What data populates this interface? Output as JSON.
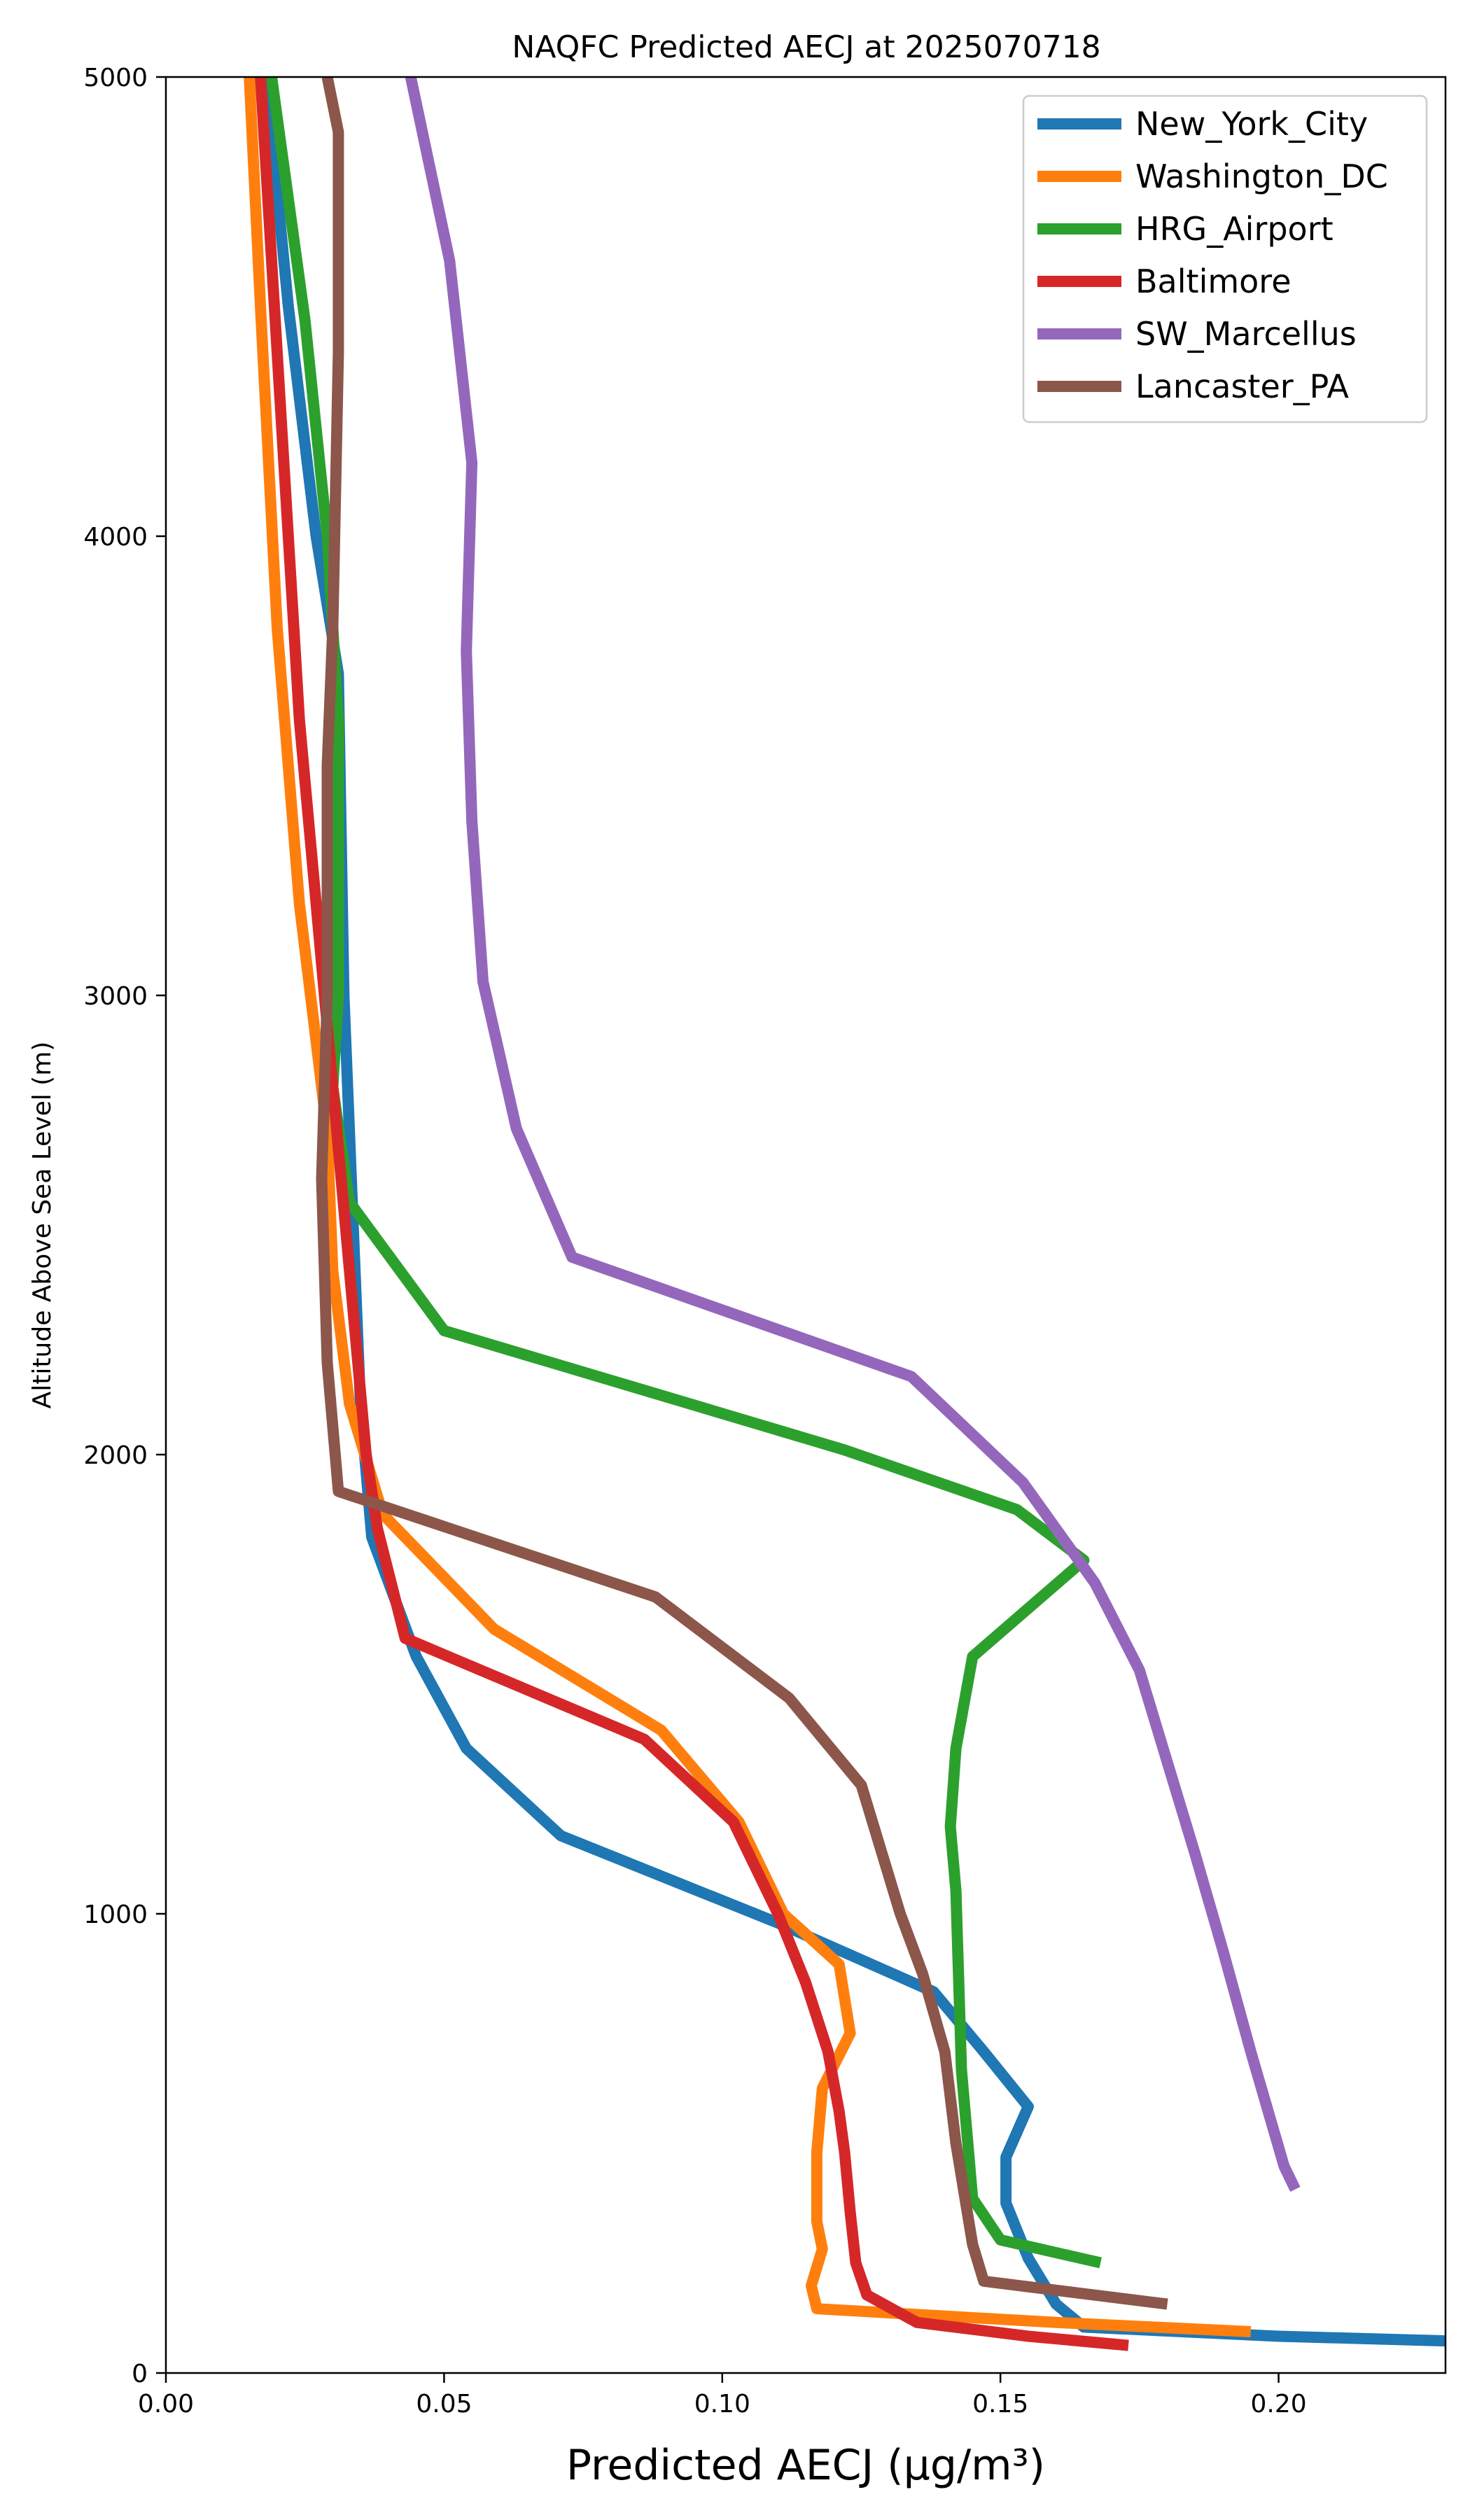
{
  "chart_data": {
    "type": "line",
    "title": "NAQFC Predicted AECJ at 2025070718",
    "xlabel": "Predicted AECJ (μg/m³)",
    "ylabel": "Altitude Above Sea Level (m)",
    "xlim": [
      0,
      0.23
    ],
    "ylim": [
      0,
      5000
    ],
    "xticks": [
      "0.00",
      "0.05",
      "0.10",
      "0.15",
      "0.20"
    ],
    "yticks": [
      "0",
      "1000",
      "2000",
      "3000",
      "4000",
      "5000"
    ],
    "grid": false,
    "legend_position": "top-right",
    "series": [
      {
        "name": "New_York_City",
        "color": "#1f77b4",
        "points": [
          [
            0.23,
            70
          ],
          [
            0.2,
            80
          ],
          [
            0.165,
            100
          ],
          [
            0.16,
            150
          ],
          [
            0.155,
            250
          ],
          [
            0.151,
            370
          ],
          [
            0.151,
            470
          ],
          [
            0.155,
            580
          ],
          [
            0.147,
            700
          ],
          [
            0.138,
            830
          ],
          [
            0.11,
            980
          ],
          [
            0.071,
            1170
          ],
          [
            0.054,
            1360
          ],
          [
            0.045,
            1560
          ],
          [
            0.037,
            1820
          ],
          [
            0.035,
            2100
          ],
          [
            0.034,
            2400
          ],
          [
            0.032,
            3000
          ],
          [
            0.031,
            3700
          ],
          [
            0.027,
            4000
          ],
          [
            0.022,
            4500
          ],
          [
            0.018,
            5000
          ]
        ]
      },
      {
        "name": "Washington_DC",
        "color": "#ff7f0e",
        "points": [
          [
            0.195,
            90
          ],
          [
            0.16,
            110
          ],
          [
            0.117,
            140
          ],
          [
            0.116,
            190
          ],
          [
            0.118,
            270
          ],
          [
            0.117,
            330
          ],
          [
            0.117,
            480
          ],
          [
            0.118,
            620
          ],
          [
            0.123,
            740
          ],
          [
            0.121,
            890
          ],
          [
            0.111,
            1000
          ],
          [
            0.103,
            1200
          ],
          [
            0.089,
            1400
          ],
          [
            0.059,
            1620
          ],
          [
            0.039,
            1870
          ],
          [
            0.033,
            2110
          ],
          [
            0.03,
            2400
          ],
          [
            0.029,
            2700
          ],
          [
            0.024,
            3200
          ],
          [
            0.02,
            3800
          ],
          [
            0.017,
            4500
          ],
          [
            0.015,
            5000
          ]
        ]
      },
      {
        "name": "HRG_Airport",
        "color": "#2ca02c",
        "points": [
          [
            0.168,
            240
          ],
          [
            0.15,
            290
          ],
          [
            0.145,
            380
          ],
          [
            0.143,
            660
          ],
          [
            0.142,
            1050
          ],
          [
            0.141,
            1190
          ],
          [
            0.142,
            1360
          ],
          [
            0.145,
            1560
          ],
          [
            0.165,
            1770
          ],
          [
            0.153,
            1880
          ],
          [
            0.122,
            2010
          ],
          [
            0.05,
            2270
          ],
          [
            0.033,
            2550
          ],
          [
            0.03,
            2800
          ],
          [
            0.031,
            3000
          ],
          [
            0.031,
            3300
          ],
          [
            0.031,
            3600
          ],
          [
            0.029,
            4000
          ],
          [
            0.025,
            4470
          ],
          [
            0.019,
            5000
          ]
        ]
      },
      {
        "name": "Baltimore",
        "color": "#d62728",
        "points": [
          [
            0.173,
            60
          ],
          [
            0.155,
            80
          ],
          [
            0.135,
            110
          ],
          [
            0.126,
            170
          ],
          [
            0.124,
            240
          ],
          [
            0.123,
            350
          ],
          [
            0.122,
            480
          ],
          [
            0.121,
            570
          ],
          [
            0.119,
            700
          ],
          [
            0.115,
            850
          ],
          [
            0.11,
            1000
          ],
          [
            0.102,
            1200
          ],
          [
            0.086,
            1380
          ],
          [
            0.043,
            1600
          ],
          [
            0.038,
            1840
          ],
          [
            0.036,
            2000
          ],
          [
            0.033,
            2400
          ],
          [
            0.03,
            2800
          ],
          [
            0.027,
            3200
          ],
          [
            0.024,
            3600
          ],
          [
            0.021,
            4200
          ],
          [
            0.019,
            4600
          ],
          [
            0.017,
            5000
          ]
        ]
      },
      {
        "name": "SW_Marcellus",
        "color": "#9467bd",
        "points": [
          [
            0.203,
            400
          ],
          [
            0.201,
            450
          ],
          [
            0.195,
            700
          ],
          [
            0.19,
            920
          ],
          [
            0.185,
            1130
          ],
          [
            0.18,
            1330
          ],
          [
            0.175,
            1530
          ],
          [
            0.167,
            1720
          ],
          [
            0.154,
            1940
          ],
          [
            0.134,
            2170
          ],
          [
            0.073,
            2430
          ],
          [
            0.063,
            2710
          ],
          [
            0.057,
            3030
          ],
          [
            0.055,
            3380
          ],
          [
            0.054,
            3750
          ],
          [
            0.055,
            4160
          ],
          [
            0.051,
            4600
          ],
          [
            0.044,
            5000
          ]
        ]
      },
      {
        "name": "Lancaster_PA",
        "color": "#8c564b",
        "points": [
          [
            0.18,
            150
          ],
          [
            0.147,
            200
          ],
          [
            0.145,
            280
          ],
          [
            0.142,
            500
          ],
          [
            0.14,
            700
          ],
          [
            0.136,
            870
          ],
          [
            0.132,
            1000
          ],
          [
            0.125,
            1280
          ],
          [
            0.112,
            1470
          ],
          [
            0.088,
            1690
          ],
          [
            0.031,
            1920
          ],
          [
            0.029,
            2200
          ],
          [
            0.028,
            2600
          ],
          [
            0.029,
            3000
          ],
          [
            0.029,
            3500
          ],
          [
            0.03,
            3800
          ],
          [
            0.031,
            4400
          ],
          [
            0.031,
            4880
          ],
          [
            0.029,
            5000
          ]
        ]
      }
    ]
  }
}
